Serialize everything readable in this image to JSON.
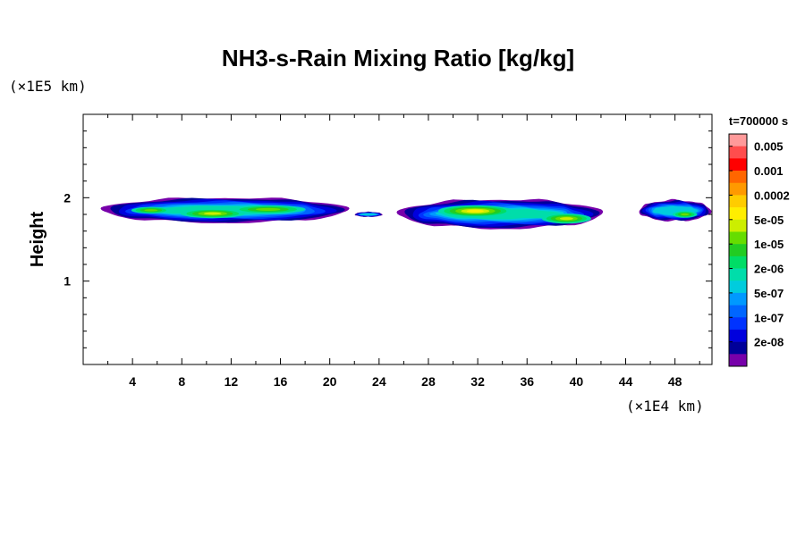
{
  "chart_data": {
    "type": "contour",
    "title": "NH3-s-Rain Mixing Ratio [kg/kg]",
    "ylabel": "Height",
    "x_unit_label": "(×1E4 km)",
    "y_unit_label": "(×1E5 km)",
    "time_label": "t=700000 s",
    "xlim": [
      0,
      51
    ],
    "ylim": [
      0,
      3
    ],
    "x_tick_labels": [
      "4",
      "8",
      "12",
      "16",
      "20",
      "24",
      "28",
      "32",
      "36",
      "40",
      "44",
      "48"
    ],
    "x_ticks": [
      4,
      8,
      12,
      16,
      20,
      24,
      28,
      32,
      36,
      40,
      44,
      48
    ],
    "y_tick_labels": [
      "1",
      "2"
    ],
    "y_ticks": [
      1,
      2
    ],
    "colorbar": {
      "labels": [
        "0.005",
        "0.001",
        "0.0002",
        "5e-05",
        "1e-05",
        "2e-06",
        "5e-07",
        "1e-07",
        "2e-08"
      ],
      "colors": [
        "#ff9a9a",
        "#ff4d4d",
        "#ff0000",
        "#ff6600",
        "#ff9900",
        "#ffcc00",
        "#ffee00",
        "#ccee00",
        "#66dd00",
        "#22cc22",
        "#00dd66",
        "#00ddaa",
        "#00ccdd",
        "#0099ff",
        "#0066ff",
        "#0033ff",
        "#0000dd",
        "#000099",
        "#7700aa"
      ]
    },
    "blobs": [
      {
        "x0": 1.2,
        "x1": 21.8,
        "ytop": 2.0,
        "ybot": 1.7,
        "level": 2
      },
      {
        "x0": 22.0,
        "x1": 24.3,
        "ytop": 1.83,
        "ybot": 1.77,
        "level": 1
      },
      {
        "x0": 25.3,
        "x1": 42.4,
        "ytop": 1.98,
        "ybot": 1.63,
        "level": 2
      },
      {
        "x0": 45.0,
        "x1": 51.0,
        "ytop": 1.97,
        "ybot": 1.72,
        "level": 1
      }
    ],
    "cores": [
      {
        "x": 10.5,
        "y": 1.81,
        "rx": 2.6,
        "ry": 0.055,
        "level": 4
      },
      {
        "x": 31.8,
        "y": 1.84,
        "rx": 3.0,
        "ry": 0.07,
        "level": 5
      },
      {
        "x": 39.2,
        "y": 1.75,
        "rx": 2.0,
        "ry": 0.06,
        "level": 4
      },
      {
        "x": 15.0,
        "y": 1.86,
        "rx": 3.0,
        "ry": 0.05,
        "level": 3
      },
      {
        "x": 5.5,
        "y": 1.85,
        "rx": 1.6,
        "ry": 0.04,
        "level": 3
      },
      {
        "x": 48.8,
        "y": 1.8,
        "rx": 1.0,
        "ry": 0.04,
        "level": 3
      }
    ]
  }
}
